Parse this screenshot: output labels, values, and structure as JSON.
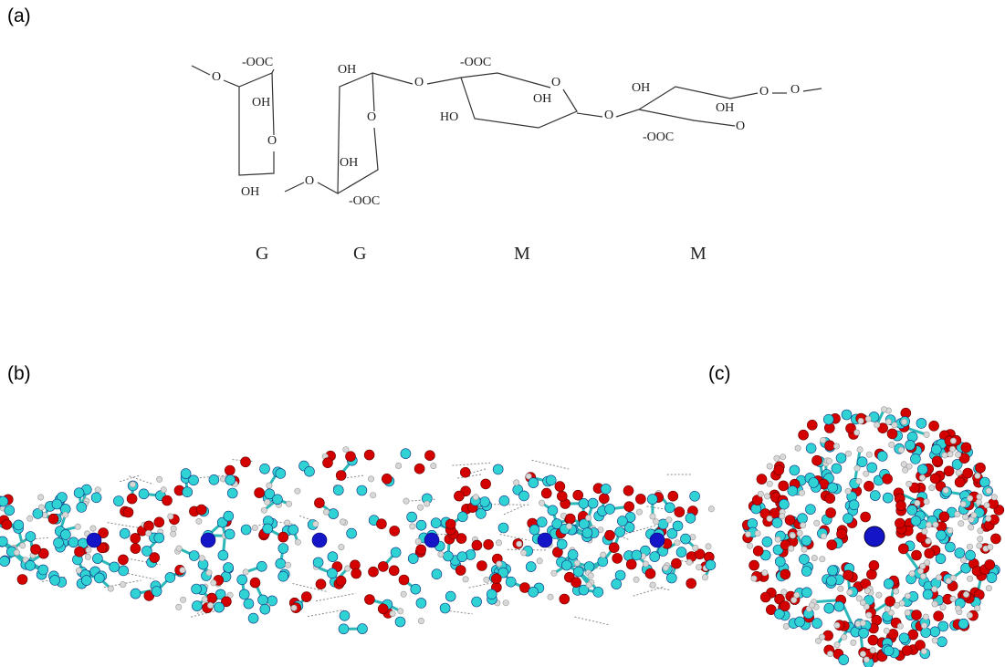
{
  "panels": {
    "a": {
      "label": "(a)"
    },
    "b": {
      "label": "(b)"
    },
    "c": {
      "label": "(c)"
    }
  },
  "structure": {
    "labels": [
      "O",
      "-OOC",
      "OH",
      "O",
      "OH",
      "O",
      "OH",
      "O",
      "OH",
      "-OOC",
      "O",
      "-OOC",
      "OH",
      "O",
      "HO",
      "O",
      "OH",
      "OH",
      "O",
      "O",
      "-OOC",
      "O"
    ],
    "residues": [
      "G",
      "G",
      "M",
      "M"
    ]
  }
}
